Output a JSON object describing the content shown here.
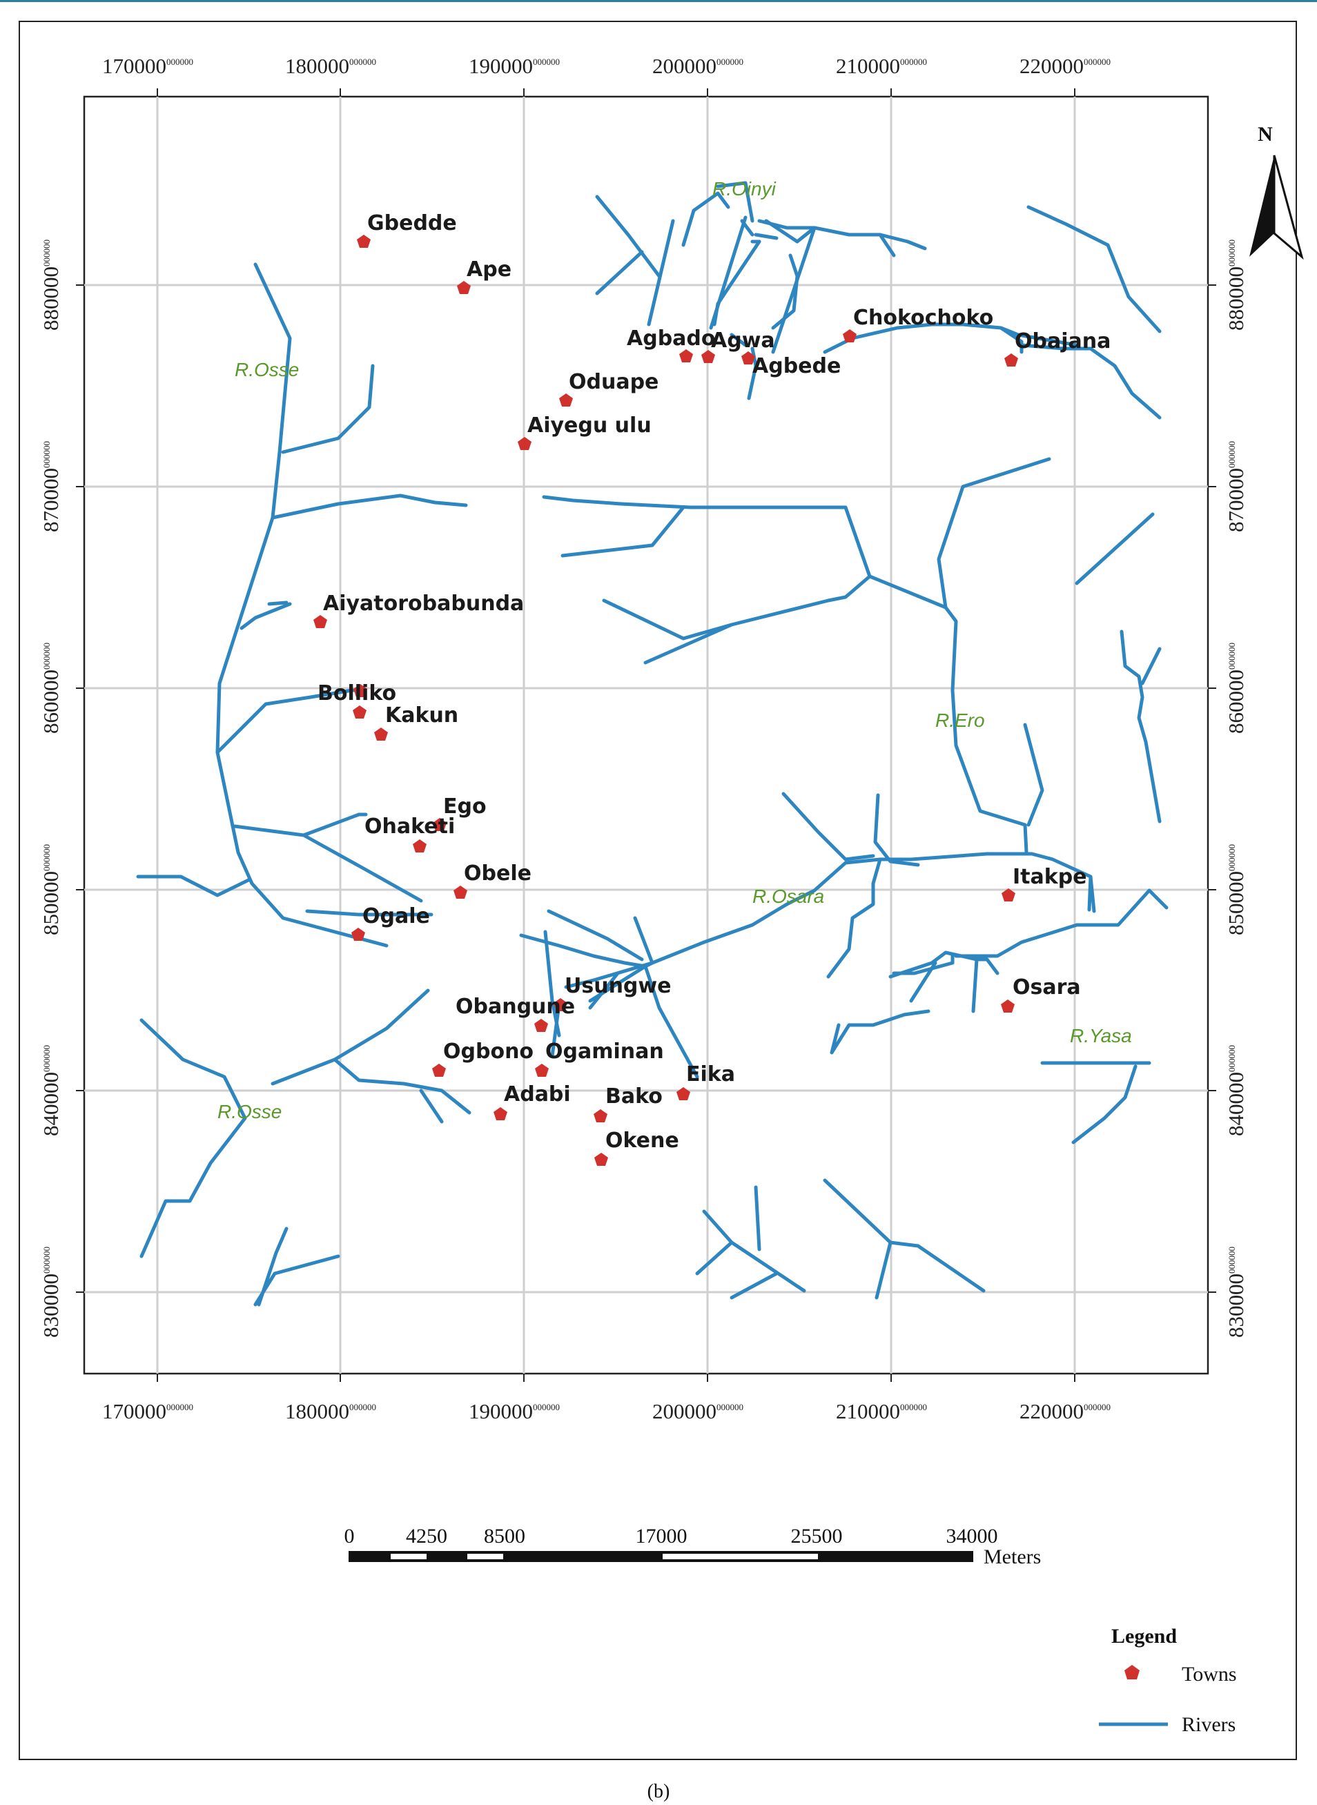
{
  "figure": {
    "caption": "(b)"
  },
  "map": {
    "colors": {
      "river": "#2e86c1",
      "town": "#d0312d",
      "grid": "#cfcfcf",
      "river_label": "#5a9a2a"
    },
    "coordinate_superscript": "000000",
    "x_axis_labels": [
      "170000",
      "180000",
      "190000",
      "200000",
      "210000",
      "220000"
    ],
    "y_axis_labels": [
      "880000",
      "870000",
      "860000",
      "850000",
      "840000",
      "830000"
    ],
    "north_arrow": {
      "label": "N"
    },
    "towns": [
      {
        "name": "Gbedde"
      },
      {
        "name": "Ape"
      },
      {
        "name": "Agbado"
      },
      {
        "name": "Agwa"
      },
      {
        "name": "Agbede"
      },
      {
        "name": "Chokochoko"
      },
      {
        "name": "Obajana"
      },
      {
        "name": "Oduape"
      },
      {
        "name": "Aiyegu ulu"
      },
      {
        "name": "Aiyatorobabunda"
      },
      {
        "name": "Bolliko"
      },
      {
        "name": "Kakun"
      },
      {
        "name": "Ego"
      },
      {
        "name": "Ohaketi"
      },
      {
        "name": "Obele"
      },
      {
        "name": "Ogale"
      },
      {
        "name": "Itakpe"
      },
      {
        "name": "Usungwe"
      },
      {
        "name": "Obangune"
      },
      {
        "name": "Osara"
      },
      {
        "name": "Ogbono"
      },
      {
        "name": "Ogaminan"
      },
      {
        "name": "Eika"
      },
      {
        "name": "Adabi"
      },
      {
        "name": "Bako"
      },
      {
        "name": "Okene"
      }
    ],
    "river_labels": [
      "R.Oinyi",
      "R.Osse",
      "R.Ero",
      "R.Osara",
      "R.Yasa",
      "R.Osse"
    ],
    "scale_bar": {
      "ticks": [
        "0",
        "4250",
        "8500",
        "17000",
        "25500",
        "34000"
      ],
      "unit": "Meters"
    },
    "legend": {
      "title": "Legend",
      "items": [
        {
          "label": "Towns",
          "symbol": "red-pentagon"
        },
        {
          "label": "Rivers",
          "symbol": "blue-line"
        }
      ]
    }
  }
}
